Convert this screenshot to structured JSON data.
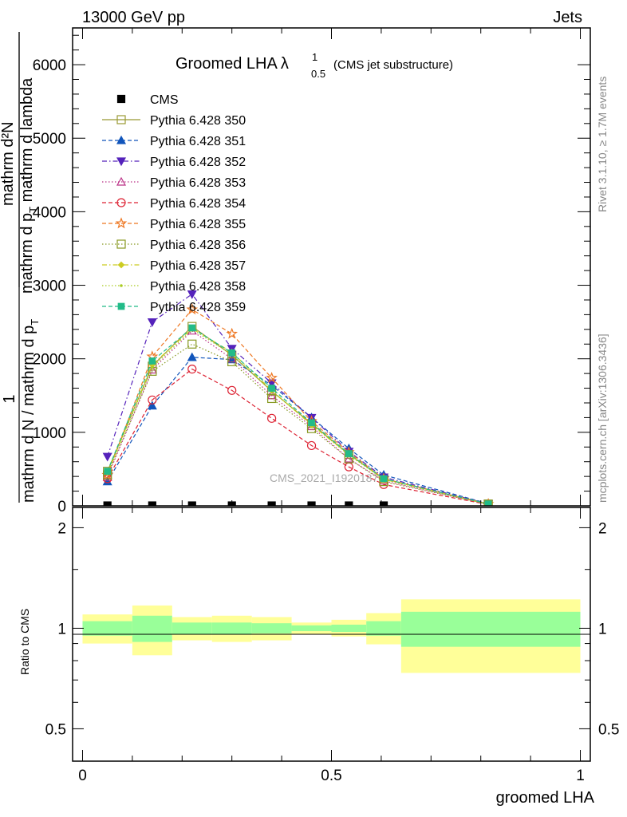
{
  "header": {
    "left": "13000 GeV pp",
    "right": "Jets"
  },
  "side_labels": {
    "rivet": "Rivet 3.1.10, ≥ 1.7M events",
    "mcplots": "mcplots.cern.ch [arXiv:1306.3436]"
  },
  "watermark": "CMS_2021_I1920187",
  "ratio_ylabel": "Ratio to CMS",
  "colors": {
    "band_inner": "#99ff99",
    "band_outer": "#ffff99"
  },
  "chart_data": [
    {
      "type": "line",
      "title": "Groomed LHA",
      "title_symbol": "λ",
      "title_sup": "1",
      "title_sub": "0.5",
      "title_note": "(CMS jet substructure)",
      "ylabel_numerator": "1",
      "ylabel_denominator": "mathrm d N / mathrm d p",
      "ylabel_denominator_sub": "T",
      "ylabel_numerator_frag": "mathrm d²N",
      "ylabel_denominator_frag": "mathrm d p",
      "ylabel_denominator_frag_sub": "T",
      "ylabel_denominator_frag_tail": " mathrm d lambda",
      "ylim": [
        0,
        6500
      ],
      "yticks": [
        0,
        1000,
        2000,
        3000,
        4000,
        5000,
        6000
      ],
      "ytick_labels": [
        "0",
        "1000",
        "2000",
        "3000",
        "4000",
        "5000",
        "6000"
      ],
      "xlim": [
        -0.02,
        1.02
      ],
      "x": [
        0.05,
        0.14,
        0.22,
        0.3,
        0.38,
        0.46,
        0.535,
        0.605,
        0.815
      ],
      "series": [
        {
          "name": "CMS",
          "color": "#000000",
          "marker": "filled-square",
          "dash": "none",
          "values": [
            5,
            5,
            5,
            5,
            5,
            5,
            5,
            5,
            null
          ]
        },
        {
          "name": "Pythia 6.428 350",
          "color": "#999933",
          "marker": "open-square",
          "dash": "solid",
          "values": [
            470,
            1900,
            2440,
            2050,
            1560,
            1120,
            700,
            370,
            25
          ]
        },
        {
          "name": "Pythia 6.428 351",
          "color": "#1155bb",
          "marker": "filled-triangle-up",
          "dash": "dashed",
          "values": [
            330,
            1360,
            2020,
            1990,
            1640,
            1200,
            780,
            420,
            30
          ]
        },
        {
          "name": "Pythia 6.428 352",
          "color": "#5522bb",
          "marker": "filled-triangle-down",
          "dash": "dashdot",
          "values": [
            670,
            2500,
            2880,
            2140,
            1670,
            1200,
            740,
            390,
            28
          ]
        },
        {
          "name": "Pythia 6.428 353",
          "color": "#bb3388",
          "marker": "open-triangle-up",
          "dash": "dotted",
          "values": [
            390,
            1850,
            2380,
            2000,
            1500,
            1080,
            640,
            340,
            22
          ]
        },
        {
          "name": "Pythia 6.428 354",
          "color": "#dd2233",
          "marker": "open-circle",
          "dash": "dashed",
          "values": [
            370,
            1440,
            1860,
            1570,
            1190,
            820,
            530,
            290,
            18
          ]
        },
        {
          "name": "Pythia 6.428 355",
          "color": "#ee7722",
          "marker": "open-star",
          "dash": "dashed",
          "values": [
            420,
            2030,
            2670,
            2340,
            1740,
            1150,
            730,
            370,
            25
          ]
        },
        {
          "name": "Pythia 6.428 356",
          "color": "#889922",
          "marker": "open-square",
          "dash": "dotted",
          "values": [
            420,
            1830,
            2200,
            1960,
            1460,
            1050,
            640,
            330,
            22
          ]
        },
        {
          "name": "Pythia 6.428 357",
          "color": "#cccc22",
          "marker": "filled-diamond",
          "dash": "dashdot",
          "values": [
            450,
            1920,
            2410,
            2090,
            1570,
            1100,
            700,
            360,
            24
          ]
        },
        {
          "name": "Pythia 6.428 358",
          "color": "#aacc22",
          "marker": "dot",
          "dash": "dotted",
          "values": [
            450,
            1880,
            2400,
            2060,
            1560,
            1110,
            690,
            360,
            24
          ]
        },
        {
          "name": "Pythia 6.428 359",
          "color": "#22bb88",
          "marker": "filled-square-small",
          "dash": "dashed",
          "values": [
            470,
            1970,
            2420,
            2080,
            1600,
            1130,
            710,
            370,
            25
          ]
        }
      ]
    },
    {
      "type": "area",
      "ylabel": "Ratio to CMS",
      "xlabel": "groomed LHA",
      "ylim": [
        0.4,
        2.3
      ],
      "yticks": [
        0.5,
        1,
        2
      ],
      "ytick_labels": [
        "0.5",
        "1",
        "2"
      ],
      "xticks": [
        0,
        0.5,
        1
      ],
      "xtick_labels": [
        "0",
        "0.5",
        "1"
      ],
      "bins": [
        {
          "x0": 0.0,
          "x1": 0.1,
          "inner": [
            0.95,
            1.05
          ],
          "outer": [
            0.9,
            1.1
          ]
        },
        {
          "x0": 0.1,
          "x1": 0.18,
          "inner": [
            0.91,
            1.09
          ],
          "outer": [
            0.83,
            1.17
          ]
        },
        {
          "x0": 0.18,
          "x1": 0.26,
          "inner": [
            0.96,
            1.04
          ],
          "outer": [
            0.92,
            1.08
          ]
        },
        {
          "x0": 0.26,
          "x1": 0.34,
          "inner": [
            0.96,
            1.04
          ],
          "outer": [
            0.91,
            1.09
          ]
        },
        {
          "x0": 0.34,
          "x1": 0.42,
          "inner": [
            0.965,
            1.035
          ],
          "outer": [
            0.92,
            1.08
          ]
        },
        {
          "x0": 0.42,
          "x1": 0.5,
          "inner": [
            0.98,
            1.02
          ],
          "outer": [
            0.96,
            1.04
          ]
        },
        {
          "x0": 0.5,
          "x1": 0.57,
          "inner": [
            0.975,
            1.025
          ],
          "outer": [
            0.945,
            1.06
          ]
        },
        {
          "x0": 0.57,
          "x1": 0.64,
          "inner": [
            0.95,
            1.05
          ],
          "outer": [
            0.895,
            1.11
          ]
        },
        {
          "x0": 0.64,
          "x1": 1.0,
          "inner": [
            0.88,
            1.12
          ],
          "outer": [
            0.735,
            1.22
          ]
        }
      ]
    }
  ]
}
